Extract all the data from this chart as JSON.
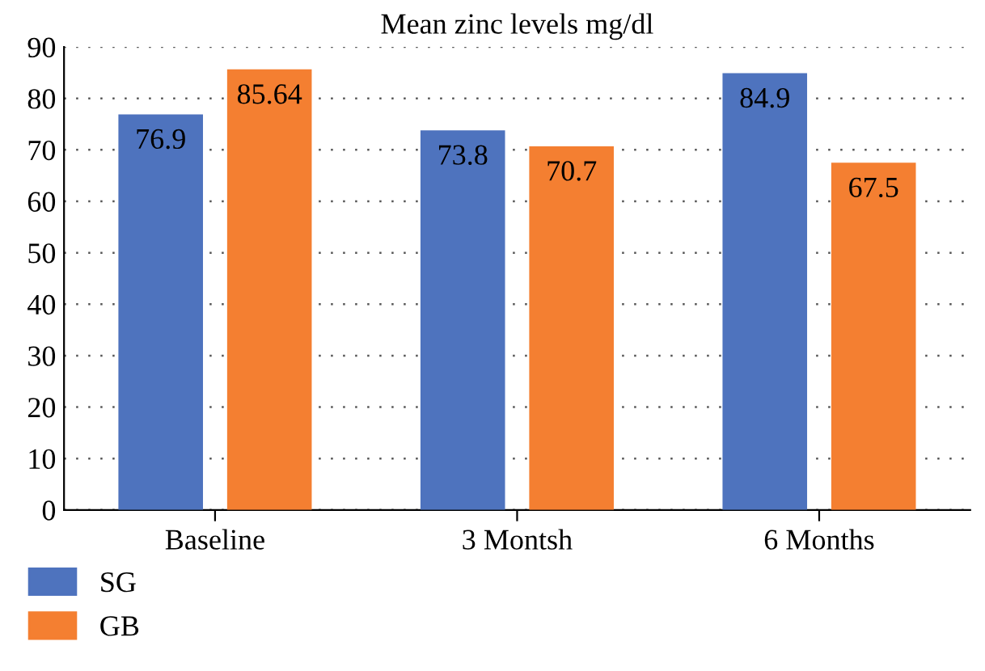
{
  "chart_data": {
    "type": "bar",
    "title": "Mean zinc levels mg/dl",
    "categories": [
      "Baseline",
      "3 Montsh",
      "6 Months"
    ],
    "series": [
      {
        "name": "SG",
        "color": "#4e73be",
        "values": [
          76.9,
          73.8,
          84.9
        ]
      },
      {
        "name": "GB",
        "color": "#f47f31",
        "values": [
          85.64,
          70.7,
          67.5
        ]
      }
    ],
    "ylim": [
      0,
      90
    ],
    "yticks": [
      0,
      10,
      20,
      30,
      40,
      50,
      60,
      70,
      80,
      90
    ],
    "grid": "y",
    "legend": "bottom left",
    "data_labels": true
  }
}
